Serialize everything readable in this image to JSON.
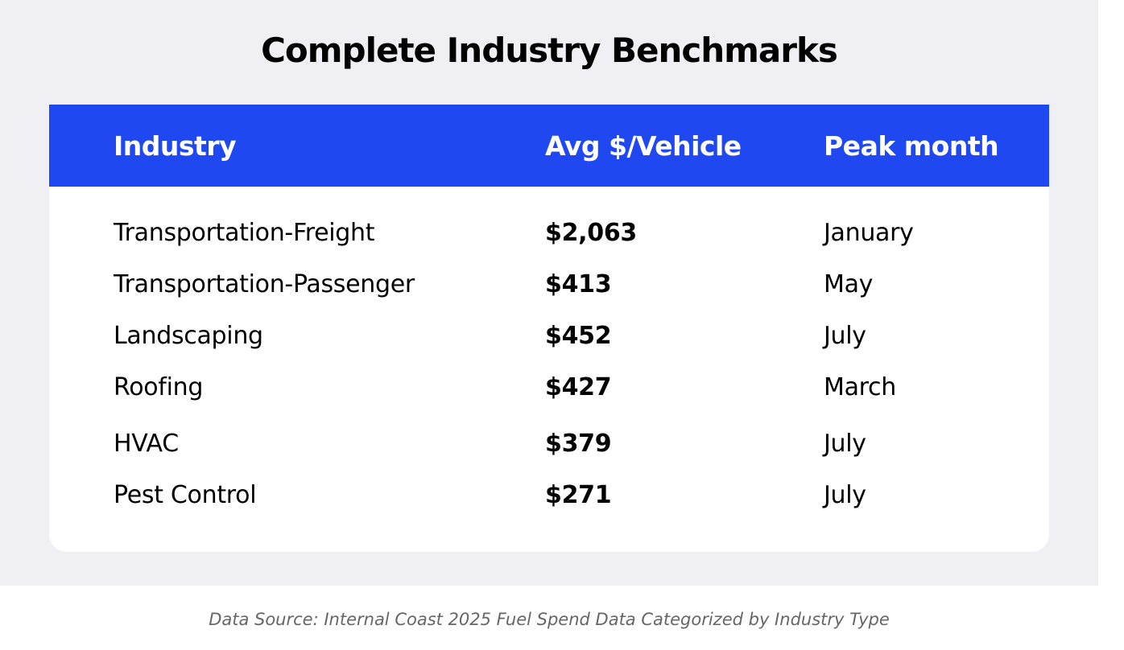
{
  "title": "Complete Industry Benchmarks",
  "table": {
    "header": [
      "Industry",
      "Avg $/Vehicle",
      "Peak month"
    ],
    "rows": [
      [
        "Transportation-Freight",
        "$2,063",
        "January"
      ],
      [
        "Transportation-Passenger",
        "$413",
        "May"
      ],
      [
        "Landscaping",
        "$452",
        "July"
      ],
      [
        "Roofing",
        "$427",
        "March"
      ],
      [
        "HVAC",
        "$379",
        "July"
      ],
      [
        "Pest Control",
        "$271",
        "July"
      ]
    ]
  },
  "footer": "Data Source: Internal Coast 2025 Fuel Spend Data Categorized by Industry Type"
}
